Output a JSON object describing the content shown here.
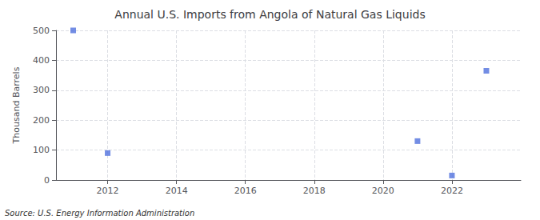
{
  "chart_data": {
    "type": "scatter",
    "title": "Annual U.S. Imports from Angola of Natural Gas Liquids",
    "ylabel": "Thousand Barrels",
    "annotations": [
      "Source: U.S. Energy Information Administration"
    ],
    "x": [
      2011,
      2012,
      2021,
      2022,
      2023
    ],
    "values": [
      500,
      90,
      130,
      15,
      365
    ],
    "marker": "square",
    "xlim": [
      2010.5,
      2024.0
    ],
    "ylim": [
      0,
      500
    ],
    "xticks": [
      2012,
      2014,
      2016,
      2018,
      2020,
      2022
    ],
    "yticks": [
      0,
      100,
      200,
      300,
      400,
      500
    ],
    "grid": true
  }
}
